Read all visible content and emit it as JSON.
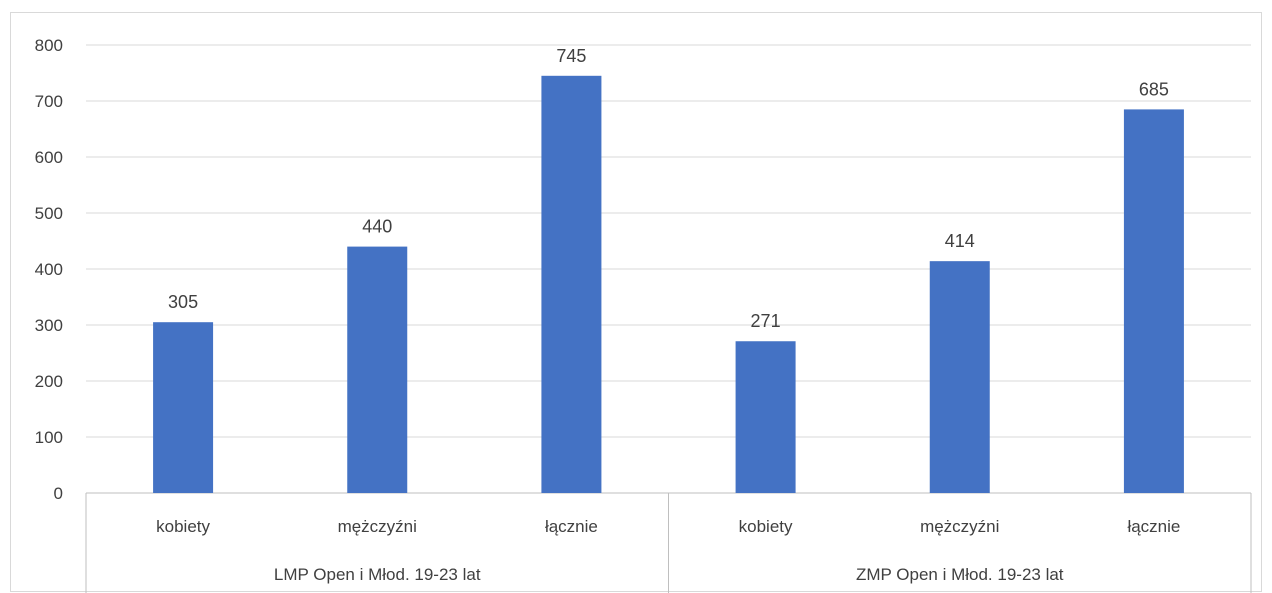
{
  "chart_data": {
    "type": "bar",
    "title": "",
    "xlabel": "",
    "ylabel": "",
    "ylim": [
      0,
      800
    ],
    "yticks": [
      0,
      100,
      200,
      300,
      400,
      500,
      600,
      700,
      800
    ],
    "grid": true,
    "legend": "none",
    "bar_color": "#4472c4",
    "groups": [
      {
        "label": "LMP Open i Młod. 19-23 lat",
        "categories": [
          "kobiety",
          "mężczyźni",
          "łącznie"
        ],
        "values": [
          305,
          440,
          745
        ]
      },
      {
        "label": "ZMP Open i Młod. 19-23 lat",
        "categories": [
          "kobiety",
          "mężczyźni",
          "łącznie"
        ],
        "values": [
          271,
          414,
          685
        ]
      }
    ]
  }
}
